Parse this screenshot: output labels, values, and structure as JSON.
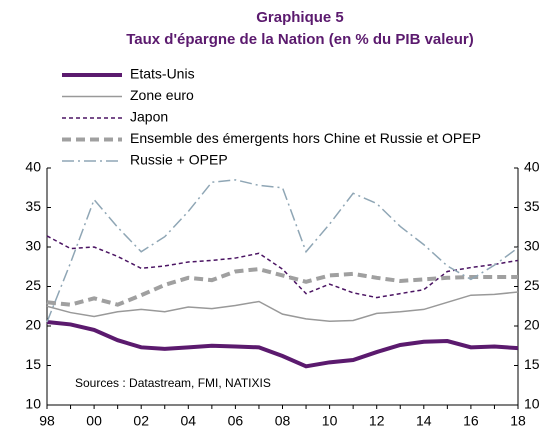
{
  "chart_data": {
    "type": "line",
    "title": "Graphique 5",
    "subtitle": "Taux d'épargne de la Nation (en % du PIB valeur)",
    "annotation": "Sources : Datastream, FMI, NATIXIS",
    "categories": [
      "98",
      null,
      "00",
      null,
      "02",
      null,
      "04",
      null,
      "06",
      null,
      "08",
      null,
      "10",
      null,
      "12",
      null,
      "14",
      null,
      "16",
      null,
      "18"
    ],
    "ylim": [
      10,
      40
    ],
    "yticks": [
      10,
      15,
      20,
      25,
      30,
      35,
      40
    ],
    "series": [
      {
        "name": "Etats-Unis",
        "color": "#5b1a6e",
        "values": [
          20.5,
          20.2,
          19.5,
          18.2,
          17.3,
          17.1,
          17.3,
          17.5,
          17.4,
          17.3,
          16.2,
          14.9,
          15.4,
          15.7,
          16.7,
          17.6,
          18.0,
          18.1,
          17.3,
          17.4,
          17.2
        ]
      },
      {
        "name": "Zone euro",
        "color": "#999999",
        "values": [
          22.5,
          21.7,
          21.2,
          21.8,
          22.1,
          21.8,
          22.4,
          22.2,
          22.6,
          23.1,
          21.5,
          20.9,
          20.6,
          20.7,
          21.6,
          21.8,
          22.1,
          23.0,
          23.9,
          24.0,
          24.3
        ]
      },
      {
        "name": "Japon",
        "color": "#4b1463",
        "values": [
          31.4,
          29.8,
          30.0,
          28.8,
          27.3,
          27.6,
          28.1,
          28.3,
          28.6,
          29.2,
          27.2,
          24.1,
          25.3,
          24.2,
          23.6,
          24.1,
          24.6,
          26.9,
          27.4,
          27.8,
          28.3
        ]
      },
      {
        "name": "Ensemble des émergents hors Chine et Russie et OPEP",
        "color": "#a0a0a0",
        "values": [
          23.0,
          22.7,
          23.5,
          22.7,
          23.9,
          25.2,
          26.1,
          25.8,
          26.9,
          27.2,
          26.4,
          25.6,
          26.4,
          26.6,
          26.1,
          25.7,
          25.9,
          26.1,
          26.2,
          26.2,
          26.2
        ]
      },
      {
        "name": "Russie + OPEP",
        "color": "#8fa6b5",
        "values": [
          20.5,
          28.0,
          36.0,
          32.5,
          29.4,
          31.3,
          34.5,
          38.2,
          38.5,
          37.8,
          37.5,
          29.4,
          32.9,
          36.8,
          35.5,
          32.6,
          30.3,
          27.6,
          25.9,
          27.7,
          29.9
        ]
      }
    ]
  }
}
